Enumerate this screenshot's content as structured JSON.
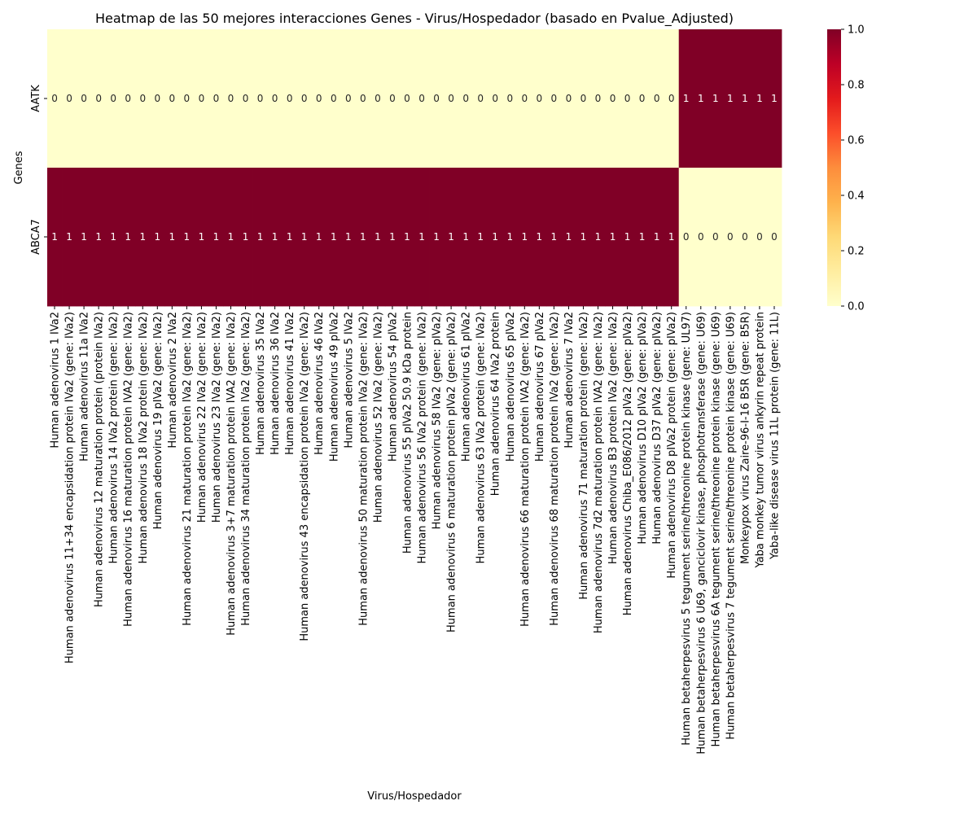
{
  "chart_data": {
    "type": "heatmap",
    "title": "Heatmap de las 50 mejores interacciones Genes - Virus/Hospedador (basado en Pvalue_Adjusted)",
    "xlabel": "Virus/Hospedador",
    "ylabel": "Genes",
    "rows": [
      "AATK",
      "ABCA7"
    ],
    "columns": [
      "Human adenovirus 1 IVa2",
      "Human adenovirus 11+34 encapsidation protein IVa2 (gene: IVa2)",
      "Human adenovirus 11a IVa2",
      "Human adenovirus 12 maturation protein (protein IVa2)",
      "Human adenovirus 14 IVa2 protein (gene: IVa2)",
      "Human adenovirus 16 maturation protein IVA2 (gene: IVa2)",
      "Human adenovirus 18 IVa2 protein (gene: IVa2)",
      "Human adenovirus 19 pIVa2 (gene: IVa2)",
      "Human adenovirus 2 IVa2",
      "Human adenovirus 21 maturation protein IVa2 (gene: IVa2)",
      "Human adenovirus 22 IVa2 (gene: IVa2)",
      "Human adenovirus 23 IVa2 (gene: IVa2)",
      "Human adenovirus 3+7 maturation protein IVA2 (gene: IVa2)",
      "Human adenovirus 34 maturation protein IVa2 (gene: IVa2)",
      "Human adenovirus 35 IVa2",
      "Human adenovirus 36 IVa2",
      "Human adenovirus 41 IVa2",
      "Human adenovirus 43 encapsidation protein IVa2 (gene: IVa2)",
      "Human adenovirus 46 IVa2",
      "Human adenovirus 49 pIVa2",
      "Human adenovirus 5 IVa2",
      "Human adenovirus 50 maturation protein IVa2 (gene: IVa2)",
      "Human adenovirus 52 IVa2 (gene: IVa2)",
      "Human adenovirus 54 pIVa2",
      "Human adenovirus 55 pIVa2 50.9 kDa protein",
      "Human adenovirus 56 IVa2 protein (gene: IVa2)",
      "Human adenovirus 58 IVa2 (gene: pIVa2)",
      "Human adenovirus 6 maturation protein pIVa2 (gene: pIVa2)",
      "Human adenovirus 61 pIVa2",
      "Human adenovirus 63 IVa2 protein (gene: IVa2)",
      "Human adenovirus 64 IVa2 protein",
      "Human adenovirus 65 pIVa2",
      "Human adenovirus 66 maturation protein IVA2 (gene: IVa2)",
      "Human adenovirus 67 pIVa2",
      "Human adenovirus 68 maturation protein IVa2 (gene: IVa2)",
      "Human adenovirus 7 IVa2",
      "Human adenovirus 71 maturation protein (gene: IVa2)",
      "Human adenovirus 7d2 maturation protein IVA2 (gene: IVa2)",
      "Human adenovirus B3 protein IVa2 (gene: IVa2)",
      "Human adenovirus Chiba_E086/2012 pIVa2 (gene: pIVa2)",
      "Human adenovirus D10 pIVa2 (gene: pIVa2)",
      "Human adenovirus D37 pIVa2 (gene: pIVa2)",
      "Human adenovirus D8 pIVa2 protein (gene: pIVa2)",
      "Human betaherpesvirus 5 tegument serine/threonine protein kinase (gene: UL97)",
      "Human betaherpesvirus 6 U69, ganciclovir kinase, phosphotransferase (gene: U69)",
      "Human betaherpesvirus 6A tegument serine/threonine protein kinase (gene: U69)",
      "Human betaherpesvirus 7 tegument serine/threonine protein kinase (gene: U69)",
      "Monkeypox virus Zaire-96-I-16 B5R (gene: B5R)",
      "Yaba monkey tumor virus ankyrin repeat protein",
      "Yaba-like disease virus 11L protein (gene: 11L)"
    ],
    "values": [
      [
        0,
        0,
        0,
        0,
        0,
        0,
        0,
        0,
        0,
        0,
        0,
        0,
        0,
        0,
        0,
        0,
        0,
        0,
        0,
        0,
        0,
        0,
        0,
        0,
        0,
        0,
        0,
        0,
        0,
        0,
        0,
        0,
        0,
        0,
        0,
        0,
        0,
        0,
        0,
        0,
        0,
        0,
        0,
        1,
        1,
        1,
        1,
        1,
        1,
        1
      ],
      [
        1,
        1,
        1,
        1,
        1,
        1,
        1,
        1,
        1,
        1,
        1,
        1,
        1,
        1,
        1,
        1,
        1,
        1,
        1,
        1,
        1,
        1,
        1,
        1,
        1,
        1,
        1,
        1,
        1,
        1,
        1,
        1,
        1,
        1,
        1,
        1,
        1,
        1,
        1,
        1,
        1,
        1,
        1,
        0,
        0,
        0,
        0,
        0,
        0,
        0
      ]
    ],
    "annotations": "cell values printed",
    "colormap": "YlOrRd",
    "color_low": "#ffffcc",
    "color_high": "#800026",
    "colorbar": {
      "range": [
        0.0,
        1.0
      ],
      "ticks": [
        "0.0",
        "0.2",
        "0.4",
        "0.6",
        "0.8",
        "1.0"
      ]
    }
  }
}
